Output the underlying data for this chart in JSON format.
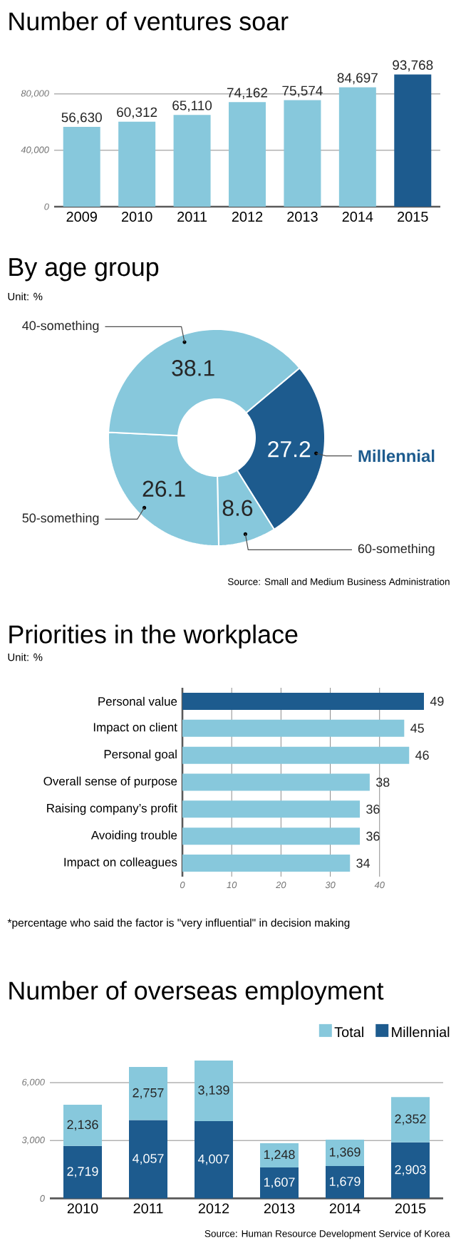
{
  "chart_data": [
    {
      "type": "bar",
      "title": "Number of ventures soar",
      "categories": [
        "2009",
        "2010",
        "2011",
        "2012",
        "2013",
        "2014",
        "2015"
      ],
      "values": [
        56630,
        60312,
        65110,
        74162,
        75574,
        84697,
        93768
      ],
      "value_labels": [
        "56,630",
        "60,312",
        "65,110",
        "74,162",
        "75,574",
        "84,697",
        "93,768"
      ],
      "colors": [
        "#87c8dc",
        "#87c8dc",
        "#87c8dc",
        "#87c8dc",
        "#87c8dc",
        "#87c8dc",
        "#1d5b8e"
      ],
      "ylim": [
        0,
        93768
      ],
      "yticks": [
        0,
        {
          "value": 40000,
          "label": "40,000"
        },
        {
          "value": 80000,
          "label": "80,000"
        }
      ],
      "grid": "y"
    },
    {
      "type": "donut",
      "title": "By age group",
      "subtitle": "Unit: %",
      "categories": [
        "Millennial",
        "60-something",
        "50-something",
        "40-something"
      ],
      "values": [
        27.2,
        8.6,
        26.1,
        38.1
      ],
      "colors": [
        "#1d5b8e",
        "#87c8dc",
        "#87c8dc",
        "#87c8dc"
      ],
      "data_labels": true,
      "annotations": [
        "Source: Small and Medium Business Administration"
      ]
    },
    {
      "type": "bar",
      "orientation": "horizontal",
      "title": "Priorities in the workplace",
      "subtitle": "Unit: %",
      "categories": [
        "Personal value",
        "Impact on client",
        "Personal goal",
        "Overall sense of purpose",
        "Raising company’s profit",
        "Avoiding trouble",
        "Impact on colleagues"
      ],
      "values": [
        49,
        45,
        46,
        38,
        36,
        36,
        34
      ],
      "colors": [
        "#1d5b8e",
        "#87c8dc",
        "#87c8dc",
        "#87c8dc",
        "#87c8dc",
        "#87c8dc",
        "#87c8dc"
      ],
      "data_labels": true,
      "xlim": [
        0,
        49
      ],
      "xticks": [
        0,
        10,
        20,
        30,
        40
      ],
      "grid": "x",
      "annotations": [
        "*percentage who said the factor is \"very influential\" in decision making"
      ]
    },
    {
      "type": "bar",
      "stacked": true,
      "title": "Number of overseas employment",
      "categories": [
        "2010",
        "2011",
        "2012",
        "2013",
        "2014",
        "2015"
      ],
      "series": [
        {
          "name": "Millennial",
          "color": "#1d5b8e",
          "values": [
            2719,
            4057,
            4007,
            1607,
            1679,
            2903
          ],
          "value_labels": [
            "2,719",
            "4,057",
            "4,007",
            "1,607",
            "1,679",
            "2,903"
          ]
        },
        {
          "name": "Total",
          "color": "#87c8dc",
          "values": [
            2136,
            2757,
            3139,
            1248,
            1369,
            2352
          ],
          "value_labels": [
            "2,136",
            "2,757",
            "3,139",
            "1,248",
            "1,369",
            "2,352"
          ]
        }
      ],
      "ylim": [
        0,
        7146
      ],
      "yticks": [
        0,
        {
          "value": 3000,
          "label": "3,000"
        },
        {
          "value": 6000,
          "label": "6,000"
        }
      ],
      "grid": "y",
      "legend": "top right",
      "annotations": [
        "Source: Human Resource Development Service of Korea"
      ]
    }
  ]
}
